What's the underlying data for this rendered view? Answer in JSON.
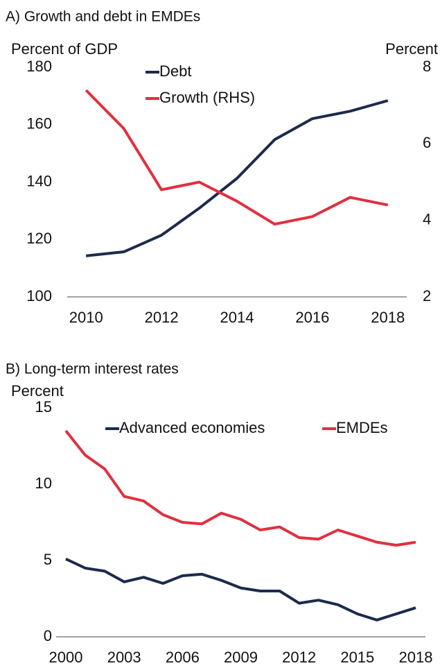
{
  "chart_data": [
    {
      "type": "line",
      "title": "A) Growth and debt in EMDEs",
      "ylabel": "Percent of GDP",
      "y2label": "Percent",
      "x": [
        2010,
        2011,
        2012,
        2013,
        2014,
        2015,
        2016,
        2017,
        2018
      ],
      "xlim": [
        2009.5,
        2018.5
      ],
      "xticks": [
        2010,
        2012,
        2014,
        2016,
        2018
      ],
      "ylim": [
        100,
        180
      ],
      "yticks": [
        100,
        120,
        140,
        160,
        180
      ],
      "y2lim": [
        2,
        8
      ],
      "y2ticks": [
        2,
        4,
        6,
        8
      ],
      "series": [
        {
          "name": "Debt",
          "color": "#1c2a4c",
          "values": [
            114.3,
            115.7,
            121.5,
            130.9,
            141.3,
            154.8,
            162.1,
            164.7,
            168.4
          ]
        },
        {
          "name": "Growth (RHS)",
          "color": "#e0303f",
          "axis": "y2",
          "values": [
            7.4,
            6.4,
            4.8,
            5.0,
            4.5,
            3.9,
            4.1,
            4.6,
            4.4
          ]
        }
      ]
    },
    {
      "type": "line",
      "title": "B) Long-term interest rates",
      "ylabel": "Percent",
      "x": [
        2000,
        2001,
        2002,
        2003,
        2004,
        2005,
        2006,
        2007,
        2008,
        2009,
        2010,
        2011,
        2012,
        2013,
        2014,
        2015,
        2016,
        2017,
        2018
      ],
      "xlim": [
        1999.5,
        2018.5
      ],
      "xticks": [
        2000,
        2003,
        2006,
        2009,
        2012,
        2015,
        2018
      ],
      "ylim": [
        0,
        15
      ],
      "yticks": [
        0,
        5,
        10,
        15
      ],
      "series": [
        {
          "name": "Advanced economies",
          "color": "#1c2a4c",
          "values": [
            5.1,
            4.5,
            4.3,
            3.6,
            3.9,
            3.5,
            4.0,
            4.1,
            3.7,
            3.2,
            3.0,
            3.0,
            2.2,
            2.4,
            2.1,
            1.5,
            1.1,
            1.5,
            1.9
          ]
        },
        {
          "name": "EMDEs",
          "color": "#e0303f",
          "values": [
            13.5,
            11.9,
            11.0,
            9.2,
            8.9,
            8.0,
            7.5,
            7.4,
            8.1,
            7.7,
            7.0,
            7.2,
            6.5,
            6.4,
            7.0,
            6.6,
            6.2,
            6.0,
            6.2
          ]
        }
      ]
    }
  ]
}
